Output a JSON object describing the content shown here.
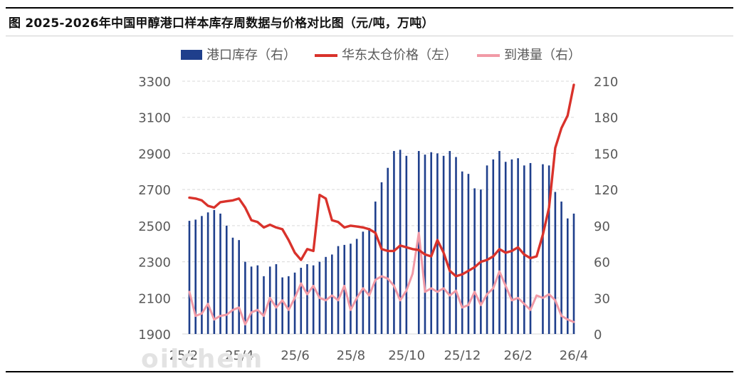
{
  "title": "图  2025-2026年中国甲醇港口样本库存周数据与价格对比图（元/吨，万吨）",
  "watermark": "oilchem",
  "colors": {
    "inventory": "#1f3f8c",
    "price": "#d9322b",
    "arrivals": "#f19aa6",
    "grid": "#d9d9d9",
    "axis_text": "#595959"
  },
  "chart_data": {
    "type": "bar+line",
    "legend_position": "top",
    "x_labels": [
      "25/2",
      "25/4",
      "25/6",
      "25/8",
      "25/10",
      "25/12",
      "26/2",
      "26/4"
    ],
    "left_axis": {
      "ticks": [
        1900,
        2100,
        2300,
        2500,
        2700,
        2900,
        3100,
        3300
      ],
      "range": [
        1900,
        3300
      ]
    },
    "right_axis": {
      "ticks": [
        0,
        30,
        60,
        90,
        120,
        150,
        180,
        210
      ],
      "range": [
        0,
        210
      ]
    },
    "grid": true,
    "series": [
      {
        "name": "港口库存（右）",
        "kind": "bar",
        "axis": "right",
        "values": [
          94,
          95,
          98,
          101,
          103,
          100,
          90,
          80,
          78,
          60,
          56,
          57,
          48,
          56,
          58,
          47,
          48,
          51,
          55,
          58,
          57,
          60,
          64,
          66,
          73,
          74,
          75,
          79,
          85,
          88,
          110,
          126,
          138,
          152,
          153,
          148,
          0,
          152,
          149,
          151,
          150,
          148,
          152,
          147,
          135,
          133,
          121,
          120,
          140,
          145,
          152,
          143,
          145,
          146,
          140,
          142,
          0,
          141,
          140,
          118,
          110,
          96,
          100
        ]
      },
      {
        "name": "华东太仓价格（左）",
        "kind": "line",
        "axis": "left",
        "values": [
          2655,
          2650,
          2640,
          2610,
          2600,
          2630,
          2635,
          2640,
          2650,
          2600,
          2530,
          2520,
          2490,
          2505,
          2490,
          2480,
          2420,
          2350,
          2310,
          2370,
          2360,
          2670,
          2650,
          2530,
          2520,
          2490,
          2500,
          2495,
          2490,
          2480,
          2460,
          2370,
          2360,
          2360,
          2390,
          2380,
          2370,
          2365,
          2340,
          2330,
          2420,
          2350,
          2250,
          2220,
          2230,
          2250,
          2270,
          2300,
          2310,
          2330,
          2370,
          2350,
          2360,
          2380,
          2340,
          2320,
          2330,
          2450,
          2600,
          2930,
          3040,
          3110,
          3280
        ]
      },
      {
        "name": "到港量（右）",
        "kind": "line",
        "axis": "right",
        "values": [
          35,
          15,
          17,
          25,
          12,
          15,
          16,
          20,
          22,
          8,
          18,
          20,
          15,
          30,
          22,
          28,
          20,
          30,
          42,
          33,
          40,
          30,
          28,
          32,
          28,
          40,
          20,
          30,
          38,
          32,
          45,
          48,
          46,
          40,
          28,
          36,
          50,
          84,
          35,
          38,
          35,
          38,
          32,
          36,
          22,
          24,
          35,
          24,
          33,
          38,
          52,
          40,
          28,
          30,
          25,
          20,
          32,
          30,
          33,
          28,
          15,
          12,
          10
        ]
      }
    ]
  }
}
